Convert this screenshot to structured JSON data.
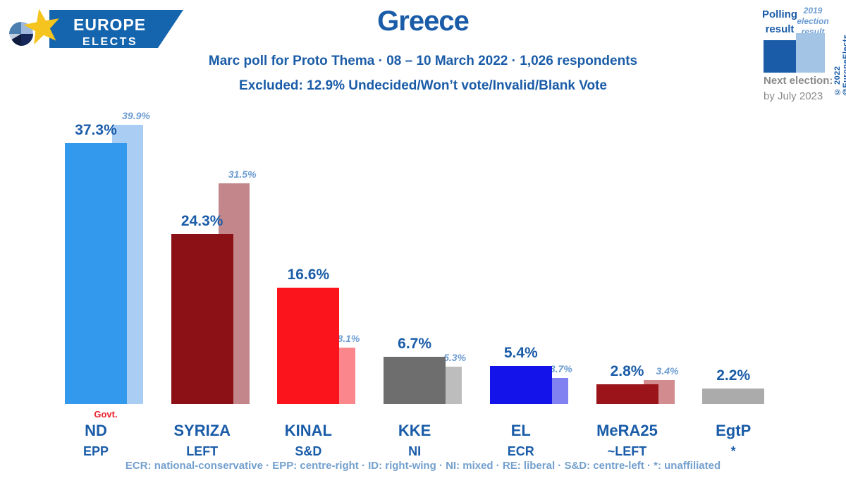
{
  "logo": {
    "line1": "EUROPE",
    "line2": "ELECTS"
  },
  "header": {
    "title": "Greece",
    "subtitle": "Marc poll for Proto Thema · 08 – 10 March 2022 · 1,026 respondents",
    "excluded": "Excluded: 12.9% Undecided/Won’t vote/Invalid/Blank Vote"
  },
  "legend": {
    "polling_label": "Polling result",
    "election_label": "2019 election result",
    "polling_swatch_color": "#1A5CA8",
    "election_swatch_color": "#A3C4E4",
    "copyright": "© 2022 @EuropeElects",
    "next_election_label": "Next election:",
    "next_election_value": "by July 2023"
  },
  "footer": {
    "groups_key": "ECR: national-conservative · EPP: centre-right · ID: right-wing · NI: mixed · RE: liberal · S&D: centre-left · *: unaffiliated"
  },
  "chart_data": {
    "type": "bar",
    "unit": "%",
    "title": "Greece",
    "categories": [
      "ND",
      "SYRIZA",
      "KINAL",
      "KKE",
      "EL",
      "MeRA25",
      "EgtP"
    ],
    "eu_groups": [
      "EPP",
      "LEFT",
      "S&D",
      "NI",
      "ECR",
      "~LEFT",
      "*"
    ],
    "series": [
      {
        "name": "Polling result",
        "values": [
          37.3,
          24.3,
          16.6,
          6.7,
          5.4,
          2.8,
          2.2
        ]
      },
      {
        "name": "2019 election result",
        "values": [
          39.9,
          31.5,
          8.1,
          5.3,
          3.7,
          3.4,
          null
        ]
      }
    ],
    "party_colors": [
      "#3399EC",
      "#8B1117",
      "#FB141C",
      "#6E6E6E",
      "#1414EA",
      "#9A1419",
      "#ABABAB"
    ],
    "party_colors_2019": [
      "#A9CDF3",
      "#C3878B",
      "#FB878C",
      "#BDBDBD",
      "#8181F2",
      "#D28C90",
      null
    ],
    "value_label_color": "#1A5CA8",
    "value_label_color_2019": "#6C9CD2",
    "annotations": [
      {
        "category": "ND",
        "text": "Govt.",
        "color": "#E8212E"
      }
    ],
    "ylim": [
      0,
      42
    ],
    "grid": false,
    "legend_position": "top-right"
  }
}
